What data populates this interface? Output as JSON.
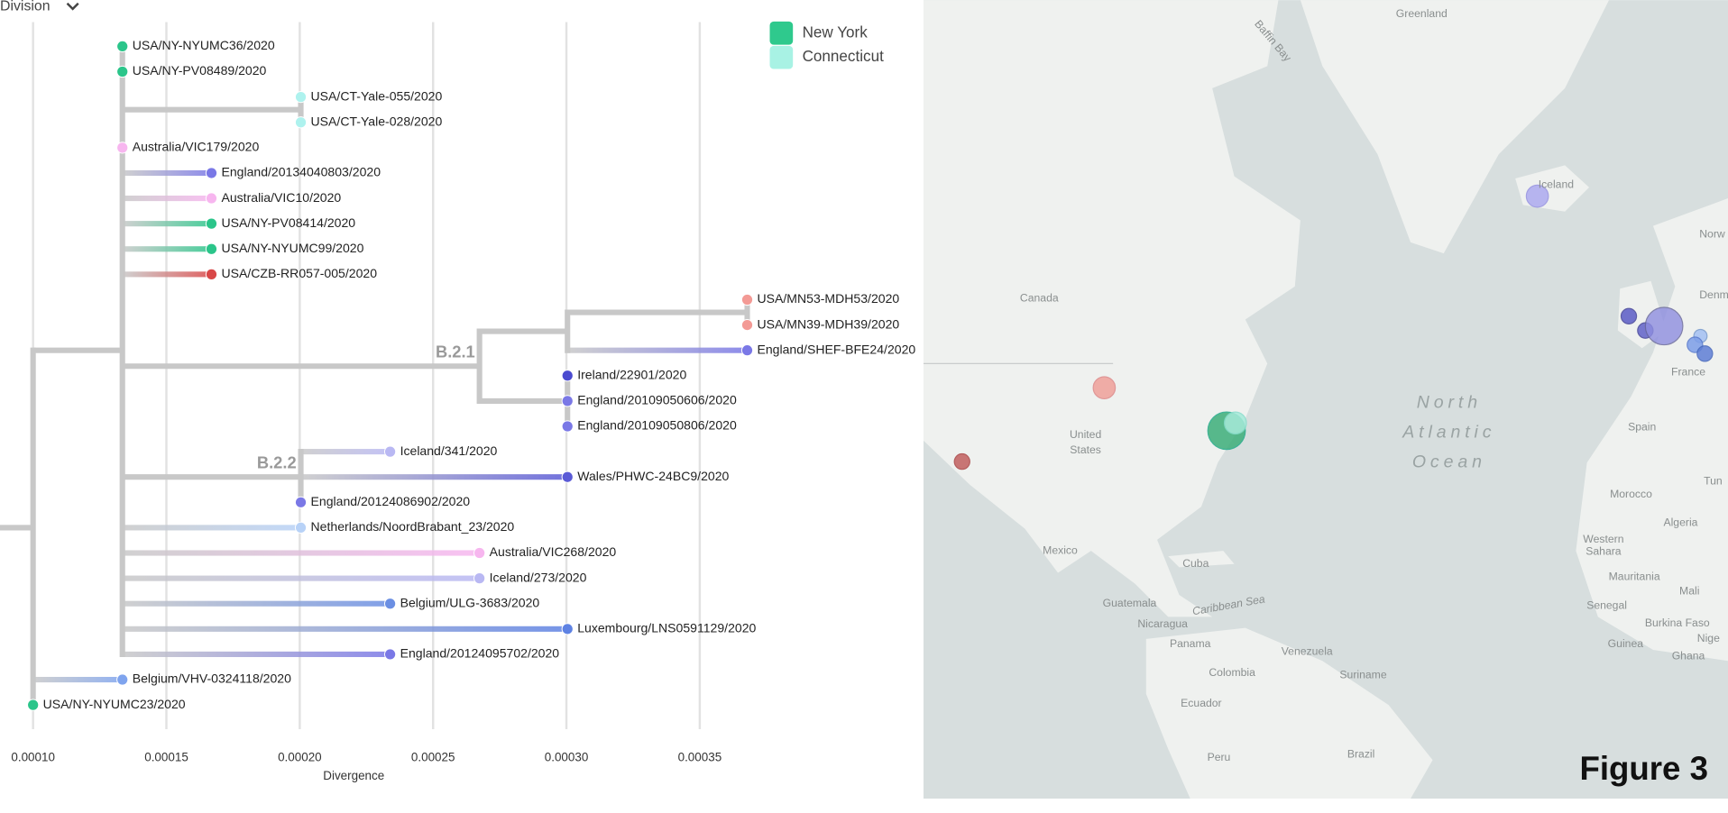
{
  "header": {
    "dropdown": "Division",
    "figure_label": "Figure 3"
  },
  "tree": {
    "x_label": "Divergence",
    "xlim": [
      8.76e-05,
      0.0004306
    ],
    "xticks": [
      {
        "value": 0.0001,
        "label": "0.00010"
      },
      {
        "value": 0.00015,
        "label": "0.00015"
      },
      {
        "value": 0.0002,
        "label": "0.00020"
      },
      {
        "value": 0.00025,
        "label": "0.00025"
      },
      {
        "value": 0.0003,
        "label": "0.00030"
      },
      {
        "value": 0.00035,
        "label": "0.00035"
      }
    ],
    "legend": [
      {
        "name": "New York",
        "color": "#2fc98d"
      },
      {
        "name": "Connecticut",
        "color": "#a8f2e4"
      }
    ],
    "root": {
      "divergence": 0.0001,
      "children": [
        {
          "divergence": 0.0001335,
          "children": [
            {
              "name": "USA/NY-NYUMC36/2020",
              "divergence": 0.0001335,
              "color": "#2bc58a"
            },
            {
              "name": "USA/NY-PV08489/2020",
              "divergence": 0.0001335,
              "color": "#2bc58a"
            },
            {
              "divergence": 0.0002004,
              "children": [
                {
                  "name": "USA/CT-Yale-055/2020",
                  "divergence": 0.0002004,
                  "color": "#aef2ee"
                },
                {
                  "name": "USA/CT-Yale-028/2020",
                  "divergence": 0.0002004,
                  "color": "#aef2ee"
                }
              ]
            },
            {
              "name": "Australia/VIC179/2020",
              "divergence": 0.0001335,
              "color": "#f7b6ef"
            },
            {
              "name": "England/20134040803/2020",
              "divergence": 0.0001669,
              "color": "#7a78e6"
            },
            {
              "name": "Australia/VIC10/2020",
              "divergence": 0.0001669,
              "color": "#f7b6ef"
            },
            {
              "name": "USA/NY-PV08414/2020",
              "divergence": 0.0001669,
              "color": "#2bc58a"
            },
            {
              "name": "USA/NY-NYUMC99/2020",
              "divergence": 0.0001669,
              "color": "#2bc58a"
            },
            {
              "name": "USA/CZB-RR057-005/2020",
              "divergence": 0.0001669,
              "color": "#d94848"
            },
            {
              "divergence": 0.0002674,
              "label": "B.2.1",
              "children": [
                {
                  "divergence": 0.0003004,
                  "children": [
                    {
                      "divergence": 0.0003678,
                      "children": [
                        {
                          "name": "USA/MN53-MDH53/2020",
                          "divergence": 0.0003678,
                          "color": "#f39a95"
                        },
                        {
                          "name": "USA/MN39-MDH39/2020",
                          "divergence": 0.0003678,
                          "color": "#f39a95"
                        }
                      ]
                    },
                    {
                      "name": "England/SHEF-BFE24/2020",
                      "divergence": 0.0003678,
                      "color": "#7a78e6"
                    }
                  ]
                },
                {
                  "divergence": 0.0003004,
                  "children": [
                    {
                      "name": "Ireland/22901/2020",
                      "divergence": 0.0003004,
                      "color": "#4b4bd0"
                    },
                    {
                      "name": "England/20109050606/2020",
                      "divergence": 0.0003004,
                      "color": "#7a78e6"
                    },
                    {
                      "name": "England/20109050806/2020",
                      "divergence": 0.0003004,
                      "color": "#7a78e6"
                    }
                  ]
                }
              ]
            },
            {
              "divergence": 0.0002004,
              "label": "B.2.2",
              "children": [
                {
                  "name": "Iceland/341/2020",
                  "divergence": 0.0002339,
                  "color": "#b9b8f3"
                },
                {
                  "name": "Wales/PHWC-24BC9/2020",
                  "divergence": 0.0003004,
                  "color": "#5a5ad6"
                },
                {
                  "name": "England/20124086902/2020",
                  "divergence": 0.0002004,
                  "color": "#7a78e6"
                }
              ]
            },
            {
              "name": "Netherlands/NoordBrabant_23/2020",
              "divergence": 0.0002004,
              "color": "#b8d2f7"
            },
            {
              "name": "Australia/VIC268/2020",
              "divergence": 0.0002674,
              "color": "#f7b6ef"
            },
            {
              "name": "Iceland/273/2020",
              "divergence": 0.0002674,
              "color": "#b9b8f3"
            },
            {
              "name": "Belgium/ULG-3683/2020",
              "divergence": 0.0002339,
              "color": "#6b8fe3"
            },
            {
              "name": "Luxembourg/LNS0591129/2020",
              "divergence": 0.0003004,
              "color": "#5e82e3"
            },
            {
              "name": "England/20124095702/2020",
              "divergence": 0.0002339,
              "color": "#7a78e6"
            }
          ]
        },
        {
          "name": "Belgium/VHV-0324118/2020",
          "divergence": 0.0001335,
          "color": "#7fa4ee"
        },
        {
          "name": "USA/NY-NYUMC23/2020",
          "divergence": 0.0001,
          "color": "#2bc58a"
        }
      ]
    }
  },
  "map": {
    "labels": [
      "Greenland",
      "Baffin Bay",
      "Canada",
      "United",
      "States",
      "Mexico",
      "Cuba",
      "Caribbean Sea",
      "Venezuela",
      "Colombia",
      "Ecuador",
      "Peru",
      "Brazil",
      "Suriname",
      "Guatemala",
      "Nicaragua",
      "Panama",
      "Iceland",
      "North",
      "Atlantic",
      "Ocean",
      "France",
      "Spain",
      "Morocco",
      "Algeria",
      "Western",
      "Sahara",
      "Mauritania",
      "Mali",
      "Senegal",
      "Burkina Faso",
      "Ghana",
      "Guinea",
      "Norw",
      "Denm",
      "Tun",
      "Nige"
    ]
  }
}
